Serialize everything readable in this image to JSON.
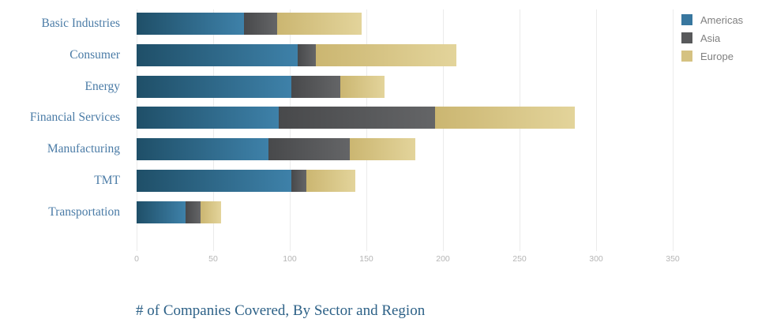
{
  "title": "# of Companies Covered, By Sector and Region",
  "legend": {
    "items": [
      {
        "label": "Americas",
        "color": "#38779f"
      },
      {
        "label": "Asia",
        "color": "#58595b"
      },
      {
        "label": "Europe",
        "color": "#d5c282"
      }
    ],
    "position": "top-right"
  },
  "chart_data": {
    "type": "bar",
    "orientation": "horizontal",
    "stacked": true,
    "title": "# of Companies Covered, By Sector and Region",
    "categories": [
      "Basic Industries",
      "Consumer",
      "Energy",
      "Financial Services",
      "Manufacturing",
      "TMT",
      "Transportation"
    ],
    "series": [
      {
        "name": "Americas",
        "color": "#38779f",
        "gradient_start": "#1f4f68",
        "gradient_end": "#3e81a9",
        "values": [
          70,
          105,
          101,
          93,
          86,
          101,
          32
        ]
      },
      {
        "name": "Asia",
        "color": "#58595b",
        "gradient_start": "#48494b",
        "gradient_end": "#646567",
        "values": [
          22,
          12,
          32,
          102,
          53,
          10,
          10
        ]
      },
      {
        "name": "Europe",
        "color": "#d5c282",
        "gradient_start": "#cbb671",
        "gradient_end": "#e3d49b",
        "values": [
          55,
          92,
          29,
          91,
          43,
          32,
          13
        ]
      }
    ],
    "totals": [
      147,
      209,
      162,
      286,
      182,
      143,
      55
    ],
    "xlabel": "",
    "ylabel": "",
    "x_ticks": [
      0,
      50,
      100,
      150,
      200,
      250,
      300,
      350
    ],
    "xlim": [
      0,
      395
    ],
    "grid": true,
    "gridline_color": "#ebebeb",
    "legend_position": "top-right"
  }
}
